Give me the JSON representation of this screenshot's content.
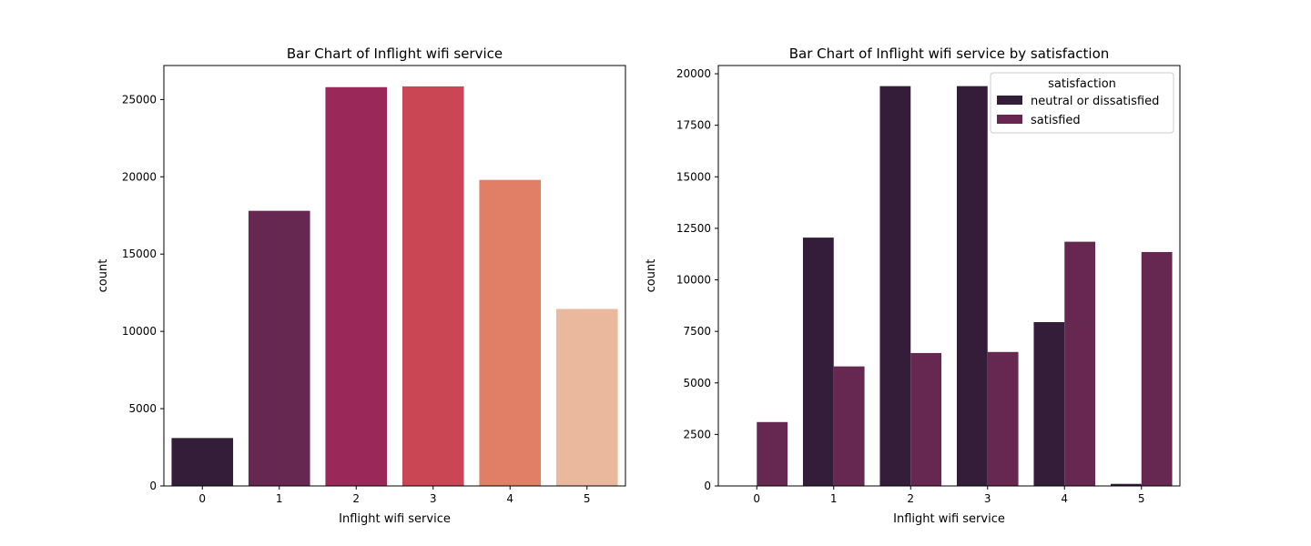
{
  "chart_data": [
    {
      "type": "bar",
      "title": "Bar Chart of Inflight wifi service",
      "xlabel": "Inflight wifi service",
      "ylabel": "count",
      "categories": [
        "0",
        "1",
        "2",
        "3",
        "4",
        "5"
      ],
      "values": [
        3100,
        17800,
        25800,
        25850,
        19800,
        11450
      ],
      "colors": [
        "#341d39",
        "#662850",
        "#9a2858",
        "#cb4655",
        "#e07f66",
        "#eab89d"
      ],
      "ylim": [
        0,
        27200
      ],
      "yticks": [
        "0",
        "5000",
        "10000",
        "15000",
        "20000",
        "25000"
      ],
      "legend": "none",
      "grid": false
    },
    {
      "type": "bar",
      "title": "Bar Chart of Inflight wifi service by satisfaction",
      "xlabel": "Inflight wifi service",
      "ylabel": "count",
      "categories": [
        "0",
        "1",
        "2",
        "3",
        "4",
        "5"
      ],
      "series": [
        {
          "name": "neutral or dissatisfied",
          "color": "#341d39",
          "values": [
            0,
            12050,
            19400,
            19400,
            7950,
            100
          ]
        },
        {
          "name": "satisfied",
          "color": "#662850",
          "values": [
            3100,
            5800,
            6450,
            6500,
            11850,
            11350
          ]
        }
      ],
      "ylim": [
        0,
        20400
      ],
      "yticks": [
        "0",
        "2500",
        "5000",
        "7500",
        "10000",
        "12500",
        "15000",
        "17500",
        "20000"
      ],
      "legend_title": "satisfaction",
      "legend": "top-right",
      "grid": false
    }
  ]
}
